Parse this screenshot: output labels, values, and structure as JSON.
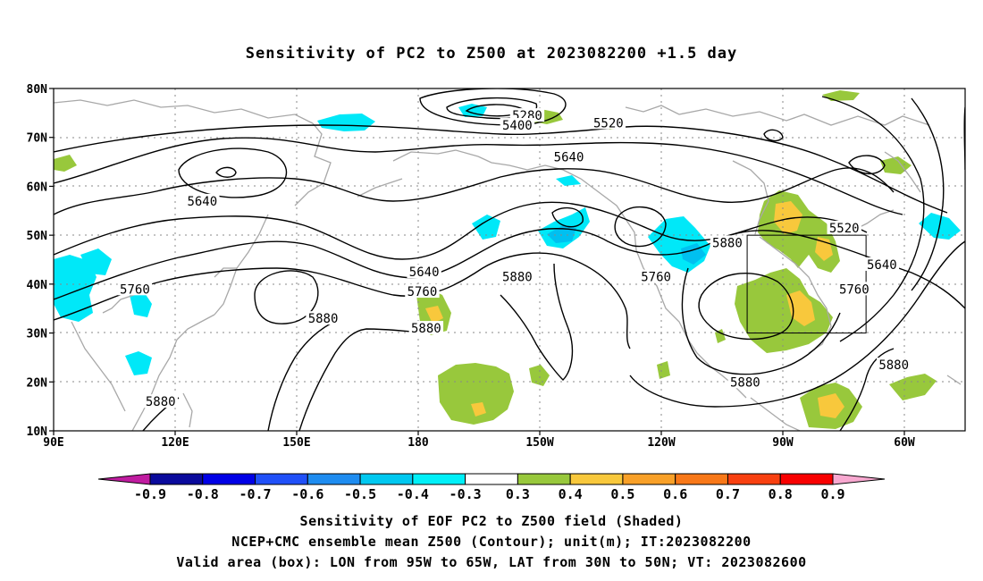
{
  "title": "Sensitivity of PC2 to Z500 at 2023082200 +1.5 day",
  "map": {
    "lat_labels": [
      "80N",
      "70N",
      "60N",
      "50N",
      "40N",
      "30N",
      "20N",
      "10N"
    ],
    "lon_labels": [
      "90E",
      "120E",
      "150E",
      "180",
      "150W",
      "120W",
      "90W",
      "60W"
    ],
    "contour_labels": [
      {
        "text": "5280",
        "lon": -150.5,
        "lat": 74.5
      },
      {
        "text": "5400",
        "lon": -153,
        "lat": 72.5
      },
      {
        "text": "5520",
        "lon": -130,
        "lat": 73
      },
      {
        "text": "5640",
        "lon": -140,
        "lat": 66
      },
      {
        "text": "5640",
        "lon": 127.5,
        "lat": 57
      },
      {
        "text": "5640",
        "lon": -176.5,
        "lat": 42.5
      },
      {
        "text": "5760",
        "lon": 110.5,
        "lat": 39
      },
      {
        "text": "5760",
        "lon": -177,
        "lat": 38.5
      },
      {
        "text": "5760",
        "lon": -118,
        "lat": 41.5
      },
      {
        "text": "5880",
        "lon": -153,
        "lat": 41.5
      },
      {
        "text": "5880",
        "lon": -100,
        "lat": 48.5
      },
      {
        "text": "5880",
        "lon": 158,
        "lat": 33
      },
      {
        "text": "5880",
        "lon": -176,
        "lat": 31
      },
      {
        "text": "5880",
        "lon": 117,
        "lat": 16
      },
      {
        "text": "5880",
        "lon": -95.5,
        "lat": 20
      },
      {
        "text": "5880",
        "lon": -58,
        "lat": 23.5
      },
      {
        "text": "5520",
        "lon": -70.5,
        "lat": 51.5
      },
      {
        "text": "5640",
        "lon": -61,
        "lat": 44
      },
      {
        "text": "5760",
        "lon": -68,
        "lat": 39
      }
    ],
    "valid_box": {
      "lon_min": -95,
      "lon_max": -65,
      "lat_min": 30,
      "lat_max": 50
    }
  },
  "colorbar": {
    "labels": [
      "-0.9",
      "-0.8",
      "-0.7",
      "-0.6",
      "-0.5",
      "-0.4",
      "-0.3",
      "0.3",
      "0.4",
      "0.5",
      "0.6",
      "0.7",
      "0.8",
      "0.9"
    ],
    "left_tip_color": "#c01ca0",
    "right_tip_color": "#f8a8d0",
    "colors": [
      "#0a0a9c",
      "#0000e6",
      "#2050f8",
      "#1e8cf0",
      "#00c8f0",
      "#00f0f8",
      "#ffffff",
      "#98c83c",
      "#f8c83c",
      "#f8a028",
      "#f87818",
      "#f84010",
      "#f80000"
    ]
  },
  "captions": {
    "line1": "Sensitivity of EOF PC2 to Z500 field (Shaded)",
    "line2": "NCEP+CMC ensemble mean Z500 (Contour); unit(m); IT:2023082200",
    "line3": "Valid area (box): LON from 95W to 65W, LAT from 30N to 50N; VT: 2023082600"
  }
}
